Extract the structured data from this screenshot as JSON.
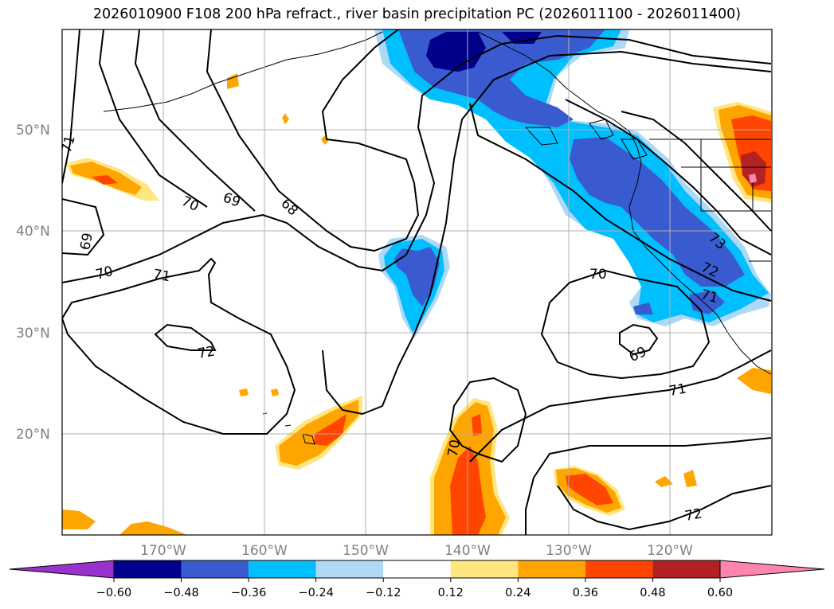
{
  "title": "2026010900 F108 200 hPa refract., river basin precipitation PC (2026011100 - 2026011400)",
  "lat_labels": [
    "50°N",
    "40°N",
    "30°N",
    "20°N"
  ],
  "lon_labels": [
    "170°W",
    "160°W",
    "150°W",
    "140°W",
    "130°W",
    "120°W"
  ],
  "contour_labels": [
    "71",
    "69",
    "70",
    "69",
    "68",
    "70",
    "71",
    "72",
    "70",
    "69",
    "71",
    "72",
    "70",
    "73",
    "72",
    "71"
  ],
  "colorbar": {
    "ticks": [
      "−0.60",
      "−0.48",
      "−0.36",
      "−0.24",
      "−0.12",
      "0.12",
      "0.24",
      "0.36",
      "0.48",
      "0.60"
    ],
    "colors": [
      "#9932cc",
      "#00008b",
      "#3a5bcf",
      "#00bfff",
      "#add8f6",
      "#ffffff",
      "#ffe680",
      "#ffa500",
      "#ff4500",
      "#b22222",
      "#ff85ad"
    ]
  },
  "colors": {
    "neg_strong": "#00008b",
    "neg_mid": "#3a5bcf",
    "neg_light": "#00bfff",
    "neg_faint": "#add8f6",
    "pos_faint": "#ffe680",
    "pos_light": "#ffa500",
    "pos_mid": "#ff4500",
    "pos_strong": "#b22222",
    "grid": "#b0b0b0"
  }
}
